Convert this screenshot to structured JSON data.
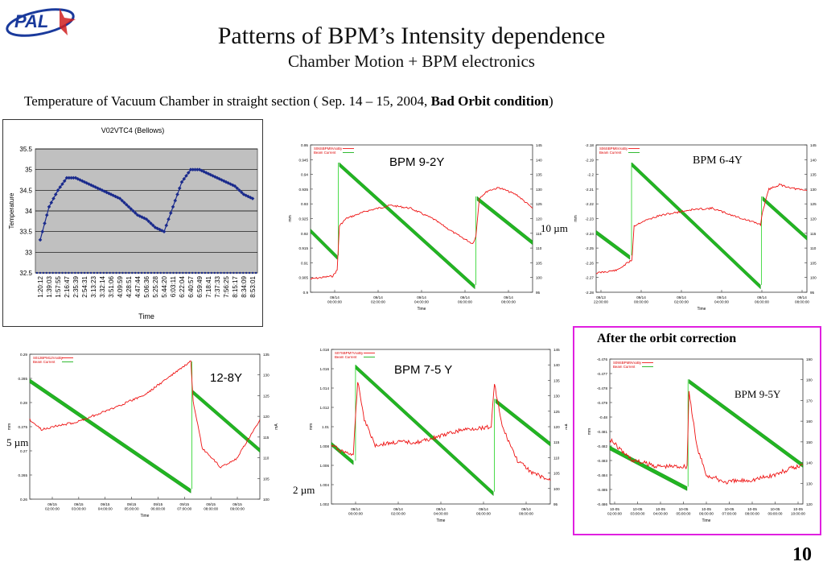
{
  "logo": {
    "text": "PAL"
  },
  "title": "Patterns of BPM’s Intensity dependence",
  "subtitle": "Chamber Motion +  BPM electronics",
  "caption": {
    "prefix": "Temperature of Vacuum Chamber in straight section ( Sep. 14 – 15, 2004,  ",
    "bold": "Bad Orbit condition",
    "suffix": ")"
  },
  "after_correction_label": "After the orbit correction",
  "page_number": "10",
  "chart_data": [
    {
      "type": "line",
      "title": "V02VTC4 (Bellows)",
      "xlabel": "Time",
      "ylabel": "Temperature",
      "ylim": [
        32.5,
        35.5
      ],
      "yticks": [
        "35.5",
        "35",
        "34.5",
        "34",
        "33.5",
        "33",
        "32.5"
      ],
      "grid": true,
      "background": "#c0c0c0",
      "series_color": "#1a2a8c",
      "x": [
        "1:20:12",
        "1:39:03",
        "1:57:55",
        "2:16:47",
        "2:35:39",
        "2:54:31",
        "3:13:23",
        "3:32:14",
        "3:51:06",
        "4:09:59",
        "4:28:51",
        "4:47:44",
        "5:06:36",
        "5:25:28",
        "5:44:20",
        "6:03:11",
        "6:22:04",
        "6:40:57",
        "6:59:49",
        "7:18:41",
        "7:37:33",
        "7:56:25",
        "8:15:17",
        "8:34:09",
        "8:53:01"
      ],
      "values": [
        33.3,
        34.1,
        34.5,
        34.8,
        34.8,
        34.7,
        34.6,
        34.5,
        34.4,
        34.3,
        34.1,
        33.9,
        33.8,
        33.6,
        33.5,
        34.1,
        34.7,
        35.0,
        35.0,
        34.9,
        34.8,
        34.7,
        34.6,
        34.4,
        34.3
      ]
    },
    {
      "type": "line",
      "label": "BPM 9-2Y",
      "legend": [
        "S06SBPM9VxxBy",
        "Beam Current"
      ],
      "xlabel": "Time",
      "ylabel": "mm",
      "ylabel_right": "mA",
      "yticks": [
        "0.95",
        "0.945",
        "0.94",
        "0.935",
        "0.93",
        "0.925",
        "0.92",
        "0.915",
        "0.91",
        "0.905",
        "0.9"
      ],
      "yticks_right": [
        "145",
        "140",
        "135",
        "130",
        "125",
        "120",
        "115",
        "110",
        "105",
        "100",
        "95"
      ],
      "xticks": [
        "09/14\n00:00:00",
        "09/14\n02:00:00",
        "09/14\n04:00:00",
        "09/14\n06:00:00",
        "09/14\n08:00:00"
      ],
      "scale_note": "10 µm"
    },
    {
      "type": "line",
      "label": "BPM 6-4Y",
      "legend": [
        "S06SBPM6VxxBy",
        "Beam Current"
      ],
      "xlabel": "Time",
      "ylabel": "mm",
      "ylabel_right": "mA",
      "yticks": [
        "-2.18",
        "-2.19",
        "-2.2",
        "-2.21",
        "-2.22",
        "-2.23",
        "-2.24",
        "-2.25",
        "-2.26",
        "-2.27",
        "-2.28"
      ],
      "yticks_right": [
        "145",
        "140",
        "135",
        "130",
        "125",
        "120",
        "115",
        "110",
        "105",
        "100",
        "95"
      ],
      "xticks": [
        "09/13\n22:00:00",
        "09/14\n00:00:00",
        "09/14\n02:00:00",
        "09/14\n04:00:00",
        "09/14\n06:00:00",
        "09/14\n08:00:00"
      ]
    },
    {
      "type": "line",
      "label": "12-8Y",
      "legend": [
        "S012BPM12VxxBy",
        "Beam Current"
      ],
      "xlabel": "Time",
      "ylabel": "mm",
      "ylabel_right": "mA",
      "yticks": [
        "0.29",
        "0.285",
        "0.28",
        "0.275",
        "0.27",
        "0.265",
        "0.26"
      ],
      "yticks_right": [
        "135",
        "130",
        "125",
        "120",
        "115",
        "110",
        "105",
        "100"
      ],
      "xticks": [
        "09/15\n02:00:00",
        "09/15\n03:00:00",
        "09/15\n04:00:00",
        "09/15\n05:00:00",
        "09/15\n06:00:00",
        "09/15\n07:00:00",
        "09/15\n08:00:00",
        "09/15\n09:00:00"
      ],
      "scale_note": "5 µm"
    },
    {
      "type": "line",
      "label": "BPM 7-5 Y",
      "legend": [
        "S07SBPM7VxxBy",
        "Beam Current"
      ],
      "xlabel": "Time",
      "ylabel": "mm",
      "ylabel_right": "mA",
      "yticks": [
        "1.018",
        "1.016",
        "1.014",
        "1.012",
        "1.01",
        "1.008",
        "1.006",
        "1.004",
        "1.002"
      ],
      "yticks_right": [
        "145",
        "140",
        "135",
        "130",
        "125",
        "120",
        "115",
        "110",
        "105",
        "100",
        "95"
      ],
      "xticks": [
        "09/14\n00:00:00",
        "09/14\n02:00:00",
        "09/14\n04:00:00",
        "09/14\n06:00:00",
        "09/14\n08:00:00"
      ],
      "scale_note": "2 µm"
    },
    {
      "type": "line",
      "label": "BPM 9-5Y",
      "legend": [
        "S09SBPM9VxxBy",
        "Beam Current"
      ],
      "xlabel": "Time",
      "ylabel": "mm",
      "ylabel_right": "mA",
      "yticks": [
        "-0.476",
        "-0.477",
        "-0.478",
        "-0.479",
        "-0.48",
        "-0.481",
        "-0.482",
        "-0.483",
        "-0.484",
        "-0.485",
        "-0.486"
      ],
      "yticks_right": [
        "190",
        "180",
        "170",
        "160",
        "150",
        "140",
        "130",
        "120"
      ],
      "xticks": [
        "10-05\n02:00:00",
        "10-05\n03:00:00",
        "10-05\n04:00:00",
        "10-05\n05:00:00",
        "10-05\n06:00:00",
        "10-05\n07:00:00",
        "10-05\n08:00:00",
        "10-05\n09:00:00",
        "10-05\n10:00:00"
      ]
    }
  ]
}
